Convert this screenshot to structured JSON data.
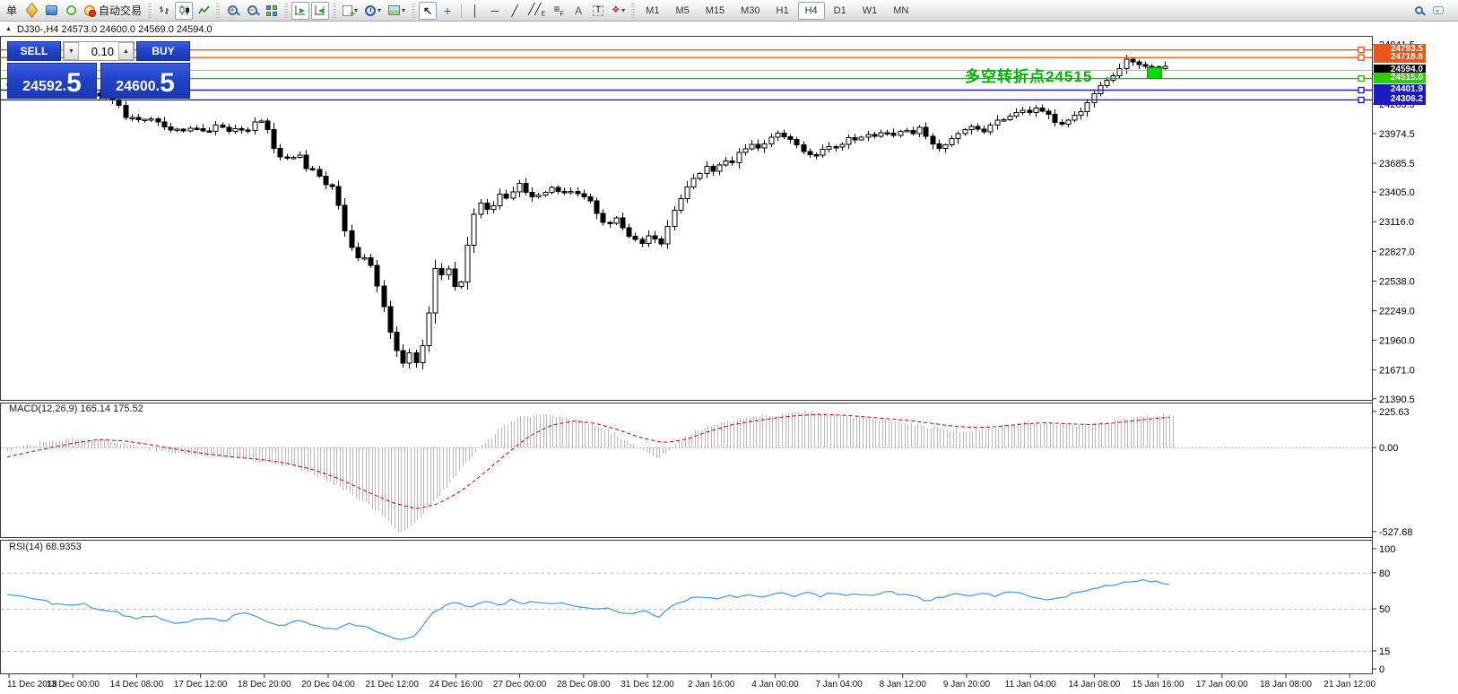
{
  "toolbar": {
    "new_order_text": "单",
    "autotrading_label": "自动交易",
    "timeframes": [
      "M1",
      "M5",
      "M15",
      "M30",
      "H1",
      "H4",
      "D1",
      "W1",
      "MN"
    ],
    "active_timeframe": "H4"
  },
  "chart_header": {
    "collapse_icon": "▲",
    "title": "DJ30-,H4  24573.0 24600.0 24569.0 24594.0"
  },
  "trade_panel": {
    "sell_label": "SELL",
    "buy_label": "BUY",
    "volume": "0.10",
    "volume_down_glyph": "▼",
    "volume_up_glyph": "▲",
    "sell_price_main": "24592",
    "sell_price_dot": ".",
    "sell_price_big": "5",
    "buy_price_main": "24600",
    "buy_price_dot": ".",
    "buy_price_big": "5"
  },
  "annotation": {
    "text": "多空转折点24515",
    "color": "#00b400"
  },
  "indicators": {
    "macd_label": "MACD(12,26,9) 165.14 175.52",
    "rsi_label": "RSI(14) 68.9353"
  },
  "price_labels": [
    {
      "text": "24793.5",
      "price": 24793.5,
      "bg": "#e8581c",
      "line": "#e8581c",
      "handle": true
    },
    {
      "text": "24718.8",
      "price": 24718.8,
      "bg": "#e8581c",
      "line": "#e8581c",
      "handle": true
    },
    {
      "text": "24594.0",
      "price": 24594.0,
      "bg": "#000000",
      "line": "#b4b4b4",
      "handle": false
    },
    {
      "text": "24515.0",
      "price": 24515.0,
      "bg": "#2ecc00",
      "line": "#2db200",
      "handle": true
    },
    {
      "text": "24401.9",
      "price": 24401.9,
      "bg": "#1c1cbe",
      "line": "#2020c0",
      "handle": true
    },
    {
      "text": "24306.2",
      "price": 24306.2,
      "bg": "#1c1cbe",
      "line": "#2020c0",
      "handle": true
    }
  ],
  "axes": {
    "price_ticks": [
      24841.5,
      24552.5,
      24263.5,
      23974.5,
      23685.5,
      23405.0,
      23116.0,
      22827.0,
      22538.0,
      22249.0,
      21960.0,
      21671.0,
      21390.5
    ],
    "macd_scale": [
      225.63,
      0.0,
      -527.68
    ],
    "rsi_scale": [
      100,
      80,
      50,
      15,
      0
    ],
    "rsi_levels": [
      80,
      50,
      15
    ],
    "time_labels": [
      "11 Dec 2018",
      "13 Dec 00:00",
      "14 Dec 08:00",
      "17 Dec 12:00",
      "18 Dec 20:00",
      "20 Dec 04:00",
      "21 Dec 12:00",
      "24 Dec 16:00",
      "27 Dec 00:00",
      "28 Dec 08:00",
      "31 Dec 12:00",
      "2 Jan 16:00",
      "4 Jan 00:00",
      "7 Jan 04:00",
      "8 Jan 12:00",
      "9 Jan 20:00",
      "11 Jan 04:00",
      "14 Jan 08:00",
      "15 Jan 16:00",
      "17 Jan 00:00",
      "18 Jan 08:00",
      "21 Jan 12:00"
    ]
  },
  "chart_data": {
    "type": "candlestick",
    "symbol": "DJ30-",
    "timeframe": "H4",
    "ohlc_display": {
      "open": "24573.0",
      "high": "24600.0",
      "low": "24569.0",
      "close": "24594.0"
    },
    "last_price": 24594.0,
    "price_path_anchors": [
      [
        10,
        24460
      ],
      [
        40,
        24510
      ],
      [
        70,
        24440
      ],
      [
        100,
        24380
      ],
      [
        128,
        24290
      ],
      [
        140,
        24140
      ],
      [
        155,
        24100
      ],
      [
        170,
        24140
      ],
      [
        185,
        24040
      ],
      [
        200,
        23990
      ],
      [
        215,
        24030
      ],
      [
        230,
        23980
      ],
      [
        242,
        24060
      ],
      [
        252,
        23990
      ],
      [
        264,
        24040
      ],
      [
        275,
        24000
      ],
      [
        287,
        24120
      ],
      [
        296,
        24090
      ],
      [
        303,
        23840
      ],
      [
        312,
        23740
      ],
      [
        322,
        23710
      ],
      [
        332,
        23780
      ],
      [
        342,
        23640
      ],
      [
        352,
        23590
      ],
      [
        362,
        23470
      ],
      [
        371,
        23440
      ],
      [
        379,
        23240
      ],
      [
        386,
        22940
      ],
      [
        394,
        22840
      ],
      [
        402,
        22740
      ],
      [
        409,
        22800
      ],
      [
        416,
        22590
      ],
      [
        425,
        22390
      ],
      [
        433,
        22090
      ],
      [
        441,
        21890
      ],
      [
        449,
        21740
      ],
      [
        456,
        21830
      ],
      [
        463,
        21740
      ],
      [
        471,
        21900
      ],
      [
        479,
        22260
      ],
      [
        486,
        22700
      ],
      [
        493,
        22590
      ],
      [
        501,
        22650
      ],
      [
        508,
        22440
      ],
      [
        516,
        22560
      ],
      [
        526,
        23160
      ],
      [
        536,
        23300
      ],
      [
        546,
        23190
      ],
      [
        556,
        23400
      ],
      [
        566,
        23320
      ],
      [
        576,
        23500
      ],
      [
        586,
        23410
      ],
      [
        596,
        23340
      ],
      [
        606,
        23400
      ],
      [
        616,
        23450
      ],
      [
        626,
        23370
      ],
      [
        636,
        23420
      ],
      [
        646,
        23390
      ],
      [
        656,
        23340
      ],
      [
        666,
        23190
      ],
      [
        676,
        23090
      ],
      [
        686,
        23150
      ],
      [
        696,
        23040
      ],
      [
        706,
        22940
      ],
      [
        716,
        22890
      ],
      [
        726,
        23000
      ],
      [
        736,
        22860
      ],
      [
        746,
        23100
      ],
      [
        756,
        23300
      ],
      [
        766,
        23450
      ],
      [
        776,
        23550
      ],
      [
        786,
        23650
      ],
      [
        796,
        23590
      ],
      [
        806,
        23740
      ],
      [
        816,
        23690
      ],
      [
        826,
        23810
      ],
      [
        836,
        23870
      ],
      [
        846,
        23840
      ],
      [
        856,
        23910
      ],
      [
        866,
        23980
      ],
      [
        876,
        23950
      ],
      [
        886,
        23890
      ],
      [
        896,
        23810
      ],
      [
        906,
        23740
      ],
      [
        916,
        23810
      ],
      [
        926,
        23870
      ],
      [
        936,
        23840
      ],
      [
        946,
        23940
      ],
      [
        956,
        23890
      ],
      [
        966,
        23970
      ],
      [
        976,
        23940
      ],
      [
        986,
        23990
      ],
      [
        996,
        23950
      ],
      [
        1006,
        24010
      ],
      [
        1016,
        23970
      ],
      [
        1026,
        24040
      ],
      [
        1036,
        23890
      ],
      [
        1046,
        23810
      ],
      [
        1056,
        23890
      ],
      [
        1066,
        23970
      ],
      [
        1076,
        24010
      ],
      [
        1086,
        24050
      ],
      [
        1096,
        23990
      ],
      [
        1106,
        24070
      ],
      [
        1116,
        24110
      ],
      [
        1126,
        24150
      ],
      [
        1136,
        24210
      ],
      [
        1146,
        24170
      ],
      [
        1156,
        24230
      ],
      [
        1166,
        24190
      ],
      [
        1176,
        24090
      ],
      [
        1186,
        24050
      ],
      [
        1196,
        24140
      ],
      [
        1206,
        24190
      ],
      [
        1216,
        24340
      ],
      [
        1226,
        24440
      ],
      [
        1236,
        24490
      ],
      [
        1246,
        24590
      ],
      [
        1256,
        24710
      ],
      [
        1266,
        24670
      ],
      [
        1276,
        24640
      ],
      [
        1286,
        24610
      ],
      [
        1296,
        24630
      ],
      [
        1306,
        24594
      ]
    ],
    "macd": {
      "scale": {
        "max": 225.63,
        "zero": 0.0,
        "min": -527.68
      },
      "hist_anchors": [
        [
          8,
          -20
        ],
        [
          30,
          10
        ],
        [
          60,
          45
        ],
        [
          90,
          60
        ],
        [
          120,
          40
        ],
        [
          150,
          10
        ],
        [
          180,
          -20
        ],
        [
          210,
          -45
        ],
        [
          240,
          -60
        ],
        [
          270,
          -70
        ],
        [
          300,
          -90
        ],
        [
          330,
          -130
        ],
        [
          360,
          -190
        ],
        [
          390,
          -280
        ],
        [
          420,
          -400
        ],
        [
          445,
          -527
        ],
        [
          460,
          -490
        ],
        [
          480,
          -360
        ],
        [
          500,
          -230
        ],
        [
          520,
          -100
        ],
        [
          540,
          30
        ],
        [
          560,
          130
        ],
        [
          580,
          185
        ],
        [
          600,
          205
        ],
        [
          625,
          195
        ],
        [
          650,
          160
        ],
        [
          675,
          110
        ],
        [
          700,
          40
        ],
        [
          720,
          -30
        ],
        [
          735,
          -65
        ],
        [
          750,
          10
        ],
        [
          775,
          100
        ],
        [
          800,
          145
        ],
        [
          825,
          175
        ],
        [
          850,
          195
        ],
        [
          875,
          215
        ],
        [
          900,
          222
        ],
        [
          925,
          210
        ],
        [
          950,
          195
        ],
        [
          975,
          175
        ],
        [
          1000,
          160
        ],
        [
          1025,
          140
        ],
        [
          1050,
          115
        ],
        [
          1075,
          100
        ],
        [
          1100,
          115
        ],
        [
          1125,
          140
        ],
        [
          1150,
          158
        ],
        [
          1175,
          148
        ],
        [
          1200,
          132
        ],
        [
          1225,
          148
        ],
        [
          1250,
          168
        ],
        [
          1275,
          188
        ],
        [
          1300,
          205
        ],
        [
          1310,
          210
        ]
      ],
      "signal_anchors": [
        [
          8,
          -60
        ],
        [
          40,
          -20
        ],
        [
          80,
          25
        ],
        [
          110,
          50
        ],
        [
          140,
          40
        ],
        [
          170,
          15
        ],
        [
          200,
          -15
        ],
        [
          230,
          -40
        ],
        [
          260,
          -60
        ],
        [
          290,
          -75
        ],
        [
          320,
          -100
        ],
        [
          350,
          -140
        ],
        [
          380,
          -200
        ],
        [
          410,
          -280
        ],
        [
          440,
          -350
        ],
        [
          465,
          -385
        ],
        [
          490,
          -350
        ],
        [
          515,
          -270
        ],
        [
          540,
          -160
        ],
        [
          565,
          -40
        ],
        [
          590,
          70
        ],
        [
          615,
          140
        ],
        [
          640,
          165
        ],
        [
          665,
          150
        ],
        [
          690,
          110
        ],
        [
          715,
          60
        ],
        [
          740,
          30
        ],
        [
          765,
          50
        ],
        [
          790,
          100
        ],
        [
          815,
          140
        ],
        [
          840,
          165
        ],
        [
          865,
          185
        ],
        [
          890,
          200
        ],
        [
          915,
          207
        ],
        [
          940,
          202
        ],
        [
          965,
          192
        ],
        [
          990,
          180
        ],
        [
          1015,
          168
        ],
        [
          1040,
          150
        ],
        [
          1065,
          132
        ],
        [
          1090,
          125
        ],
        [
          1115,
          132
        ],
        [
          1140,
          147
        ],
        [
          1165,
          155
        ],
        [
          1190,
          148
        ],
        [
          1215,
          143
        ],
        [
          1240,
          152
        ],
        [
          1265,
          168
        ],
        [
          1290,
          183
        ],
        [
          1310,
          192
        ]
      ]
    },
    "rsi": {
      "range": [
        0,
        100
      ],
      "anchors": [
        [
          8,
          62
        ],
        [
          30,
          60
        ],
        [
          50,
          57
        ],
        [
          70,
          52
        ],
        [
          90,
          55
        ],
        [
          110,
          50
        ],
        [
          130,
          47
        ],
        [
          150,
          42
        ],
        [
          170,
          44
        ],
        [
          190,
          38
        ],
        [
          210,
          40
        ],
        [
          230,
          43
        ],
        [
          250,
          40
        ],
        [
          270,
          47
        ],
        [
          290,
          42
        ],
        [
          310,
          36
        ],
        [
          330,
          40
        ],
        [
          350,
          37
        ],
        [
          370,
          33
        ],
        [
          390,
          38
        ],
        [
          410,
          35
        ],
        [
          430,
          27
        ],
        [
          450,
          24
        ],
        [
          465,
          28
        ],
        [
          480,
          46
        ],
        [
          495,
          52
        ],
        [
          510,
          55
        ],
        [
          525,
          52
        ],
        [
          540,
          56
        ],
        [
          555,
          53
        ],
        [
          570,
          57
        ],
        [
          585,
          54
        ],
        [
          600,
          56
        ],
        [
          615,
          53
        ],
        [
          630,
          55
        ],
        [
          645,
          52
        ],
        [
          660,
          49
        ],
        [
          675,
          51
        ],
        [
          690,
          48
        ],
        [
          705,
          46
        ],
        [
          720,
          48
        ],
        [
          735,
          44
        ],
        [
          750,
          52
        ],
        [
          765,
          57
        ],
        [
          780,
          60
        ],
        [
          795,
          58
        ],
        [
          810,
          61
        ],
        [
          825,
          59
        ],
        [
          840,
          62
        ],
        [
          855,
          60
        ],
        [
          870,
          63
        ],
        [
          885,
          61
        ],
        [
          900,
          64
        ],
        [
          915,
          61
        ],
        [
          930,
          63
        ],
        [
          945,
          60
        ],
        [
          960,
          63
        ],
        [
          975,
          61
        ],
        [
          990,
          64
        ],
        [
          1005,
          62
        ],
        [
          1020,
          60
        ],
        [
          1035,
          57
        ],
        [
          1050,
          60
        ],
        [
          1065,
          62
        ],
        [
          1080,
          60
        ],
        [
          1095,
          63
        ],
        [
          1110,
          61
        ],
        [
          1125,
          64
        ],
        [
          1140,
          62
        ],
        [
          1155,
          59
        ],
        [
          1170,
          56
        ],
        [
          1185,
          60
        ],
        [
          1200,
          63
        ],
        [
          1215,
          66
        ],
        [
          1230,
          68
        ],
        [
          1245,
          70
        ],
        [
          1260,
          73
        ],
        [
          1275,
          75
        ],
        [
          1290,
          72
        ],
        [
          1305,
          70
        ]
      ]
    }
  }
}
